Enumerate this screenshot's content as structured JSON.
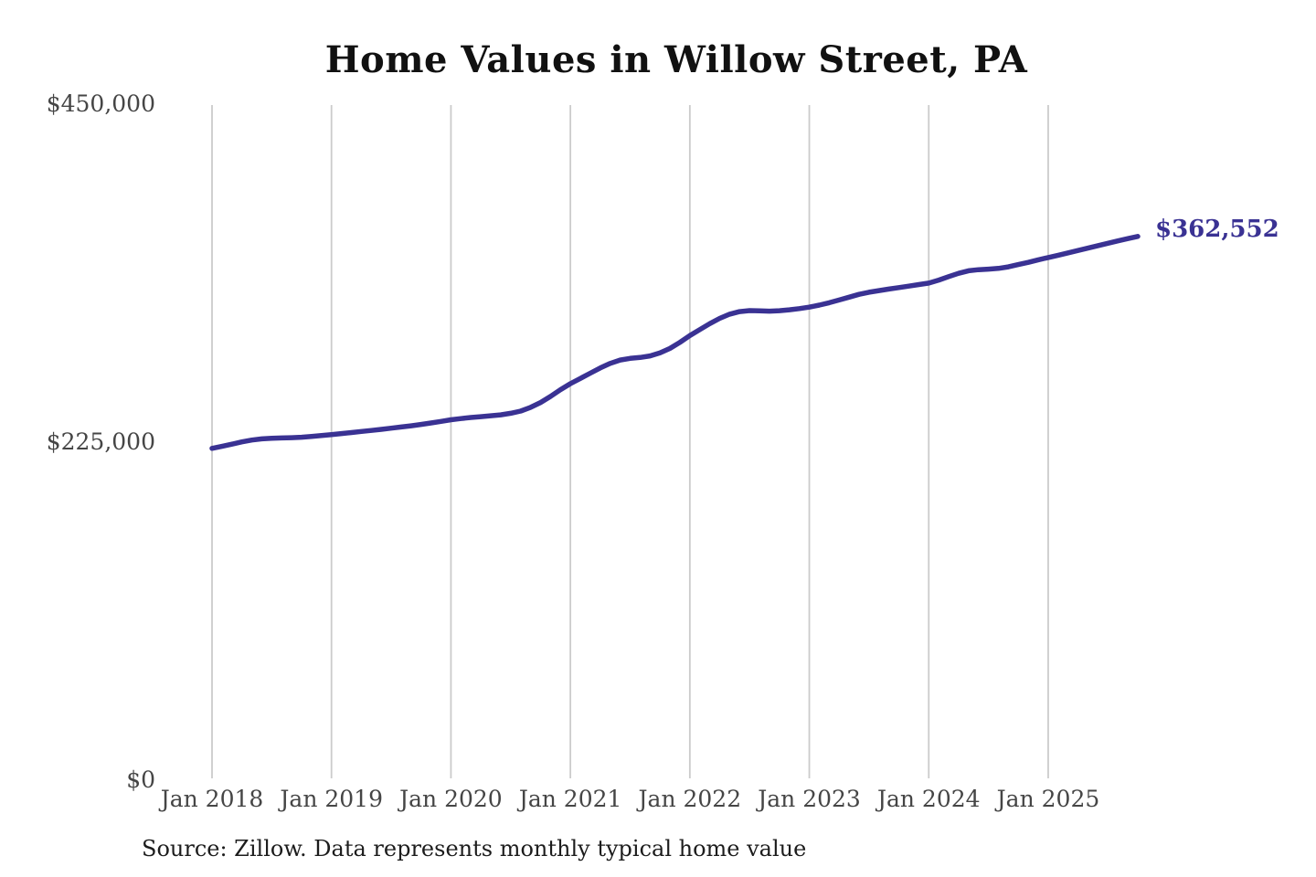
{
  "chart": {
    "title": "Home Values in Willow Street, PA",
    "end_label": "$362,552",
    "source_note": "Source: Zillow. Data represents monthly typical home value",
    "colors": {
      "line": "#3a3293",
      "grid": "#cbcbcb",
      "title_text": "#111111",
      "axis_text": "#454545",
      "end_label_text": "#3a3293",
      "source_text": "#1c1c1c",
      "background": "#ffffff"
    }
  },
  "chart_data": {
    "type": "line",
    "title": "Home Values in Willow Street, PA",
    "xlabel": "",
    "ylabel": "",
    "x_tick_labels": [
      "Jan 2018",
      "Jan 2019",
      "Jan 2020",
      "Jan 2021",
      "Jan 2022",
      "Jan 2023",
      "Jan 2024",
      "Jan 2025"
    ],
    "y_tick_labels": [
      "$0",
      "$225,000",
      "$450,000"
    ],
    "y_tick_values": [
      0,
      225000,
      450000
    ],
    "ylim": [
      0,
      450000
    ],
    "grid": "vertical-only",
    "legend": "none",
    "x_start_month": "Jan 2018",
    "x_end_month": "Oct 2025",
    "points_per_year": 12,
    "end_value": 362552,
    "end_value_label": "$362,552",
    "series": [
      {
        "name": "Monthly typical home value",
        "values": [
          221500,
          222800,
          224300,
          225800,
          227000,
          227800,
          228200,
          228400,
          228600,
          228900,
          229400,
          230000,
          230600,
          231300,
          232000,
          232700,
          233400,
          234100,
          234900,
          235700,
          236500,
          237400,
          238400,
          239400,
          240500,
          241300,
          242000,
          242600,
          243200,
          243800,
          244800,
          246300,
          248800,
          252000,
          256000,
          260500,
          264500,
          268000,
          271500,
          275000,
          278000,
          280300,
          281400,
          282000,
          283000,
          285000,
          288000,
          292000,
          296500,
          300500,
          304500,
          308000,
          310800,
          312500,
          313200,
          313000,
          312800,
          313100,
          313700,
          314500,
          315500,
          316800,
          318400,
          320200,
          322100,
          324000,
          325400,
          326500,
          327500,
          328500,
          329500,
          330500,
          331500,
          333500,
          335800,
          338000,
          339700,
          340400,
          340800,
          341300,
          342300,
          343800,
          345300,
          347000,
          348500,
          350000,
          351600,
          353200,
          354800,
          356400,
          358000,
          359600,
          361100,
          362552
        ]
      }
    ]
  }
}
